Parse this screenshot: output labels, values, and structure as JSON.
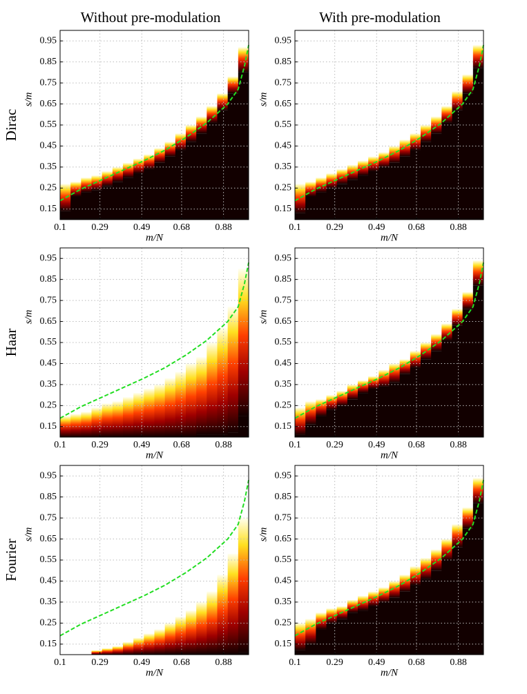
{
  "column_titles": [
    "Without pre-modulation",
    "With pre-modulation"
  ],
  "row_labels": [
    "Dirac",
    "Haar",
    "Fourier"
  ],
  "chart_data": [
    {
      "type": "phase",
      "xlabel": "m/N",
      "ylabel": "s/m",
      "xlim": [
        0.1,
        1.0
      ],
      "ylim": [
        0.1,
        1.0
      ],
      "xticks": [
        0.1,
        0.29,
        0.49,
        0.68,
        0.88
      ],
      "yticks": [
        0.15,
        0.25,
        0.35,
        0.45,
        0.55,
        0.65,
        0.75,
        0.85,
        0.95
      ],
      "grid": true,
      "x": [
        0.1,
        0.15,
        0.2,
        0.25,
        0.3,
        0.35,
        0.4,
        0.45,
        0.5,
        0.55,
        0.6,
        0.65,
        0.7,
        0.75,
        0.8,
        0.85,
        0.9,
        0.95
      ],
      "lower": [
        0.14,
        0.21,
        0.23,
        0.24,
        0.26,
        0.28,
        0.3,
        0.32,
        0.34,
        0.37,
        0.4,
        0.43,
        0.47,
        0.51,
        0.56,
        0.62,
        0.7,
        0.8
      ],
      "upper": [
        0.27,
        0.28,
        0.3,
        0.31,
        0.33,
        0.35,
        0.37,
        0.39,
        0.41,
        0.44,
        0.47,
        0.51,
        0.55,
        0.59,
        0.64,
        0.7,
        0.78,
        0.92
      ],
      "curve": {
        "color": "#22dd22",
        "x": [
          0.1,
          0.2,
          0.3,
          0.4,
          0.5,
          0.6,
          0.7,
          0.8,
          0.9,
          0.95,
          0.98,
          1.0
        ],
        "y": [
          0.19,
          0.245,
          0.29,
          0.335,
          0.38,
          0.43,
          0.49,
          0.56,
          0.65,
          0.72,
          0.83,
          0.93
        ]
      }
    },
    {
      "type": "phase",
      "xlabel": "m/N",
      "ylabel": "s/m",
      "xlim": [
        0.1,
        1.0
      ],
      "ylim": [
        0.1,
        1.0
      ],
      "xticks": [
        0.1,
        0.29,
        0.49,
        0.68,
        0.88
      ],
      "yticks": [
        0.15,
        0.25,
        0.35,
        0.45,
        0.55,
        0.65,
        0.75,
        0.85,
        0.95
      ],
      "grid": true,
      "x": [
        0.1,
        0.15,
        0.2,
        0.25,
        0.3,
        0.35,
        0.4,
        0.45,
        0.5,
        0.55,
        0.6,
        0.65,
        0.7,
        0.75,
        0.8,
        0.85,
        0.9,
        0.95
      ],
      "lower": [
        0.13,
        0.21,
        0.23,
        0.25,
        0.27,
        0.29,
        0.31,
        0.33,
        0.35,
        0.37,
        0.4,
        0.43,
        0.47,
        0.51,
        0.56,
        0.62,
        0.7,
        0.82
      ],
      "upper": [
        0.27,
        0.28,
        0.3,
        0.32,
        0.34,
        0.36,
        0.38,
        0.4,
        0.42,
        0.45,
        0.48,
        0.51,
        0.55,
        0.59,
        0.64,
        0.71,
        0.79,
        0.93
      ],
      "curve": {
        "color": "#22dd22",
        "x": [
          0.1,
          0.2,
          0.3,
          0.4,
          0.5,
          0.6,
          0.7,
          0.8,
          0.9,
          0.95,
          0.98,
          1.0
        ],
        "y": [
          0.19,
          0.245,
          0.29,
          0.335,
          0.38,
          0.43,
          0.49,
          0.56,
          0.65,
          0.72,
          0.83,
          0.93
        ]
      }
    },
    {
      "type": "phase",
      "xlabel": "m/N",
      "ylabel": "s/m",
      "xlim": [
        0.1,
        1.0
      ],
      "ylim": [
        0.1,
        1.0
      ],
      "xticks": [
        0.1,
        0.29,
        0.49,
        0.68,
        0.88
      ],
      "yticks": [
        0.15,
        0.25,
        0.35,
        0.45,
        0.55,
        0.65,
        0.75,
        0.85,
        0.95
      ],
      "grid": true,
      "x": [
        0.1,
        0.15,
        0.2,
        0.25,
        0.3,
        0.35,
        0.4,
        0.45,
        0.5,
        0.55,
        0.6,
        0.65,
        0.7,
        0.75,
        0.8,
        0.85,
        0.9,
        0.95
      ],
      "lower": [
        0.1,
        0.1,
        0.1,
        0.1,
        0.1,
        0.1,
        0.1,
        0.1,
        0.1,
        0.1,
        0.1,
        0.1,
        0.1,
        0.11,
        0.11,
        0.11,
        0.12,
        0.2
      ],
      "upper": [
        0.2,
        0.21,
        0.22,
        0.24,
        0.26,
        0.27,
        0.29,
        0.31,
        0.33,
        0.35,
        0.38,
        0.41,
        0.45,
        0.48,
        0.55,
        0.62,
        0.72,
        0.9
      ],
      "curve": {
        "color": "#22dd22",
        "x": [
          0.1,
          0.2,
          0.3,
          0.4,
          0.5,
          0.6,
          0.7,
          0.8,
          0.9,
          0.95,
          0.98,
          1.0
        ],
        "y": [
          0.19,
          0.245,
          0.29,
          0.335,
          0.38,
          0.43,
          0.49,
          0.56,
          0.65,
          0.72,
          0.83,
          0.93
        ]
      }
    },
    {
      "type": "phase",
      "xlabel": "m/N",
      "ylabel": "s/m",
      "xlim": [
        0.1,
        1.0
      ],
      "ylim": [
        0.1,
        1.0
      ],
      "xticks": [
        0.1,
        0.29,
        0.49,
        0.68,
        0.88
      ],
      "yticks": [
        0.15,
        0.25,
        0.35,
        0.45,
        0.55,
        0.65,
        0.75,
        0.85,
        0.95
      ],
      "grid": true,
      "x": [
        0.1,
        0.15,
        0.2,
        0.25,
        0.3,
        0.35,
        0.4,
        0.45,
        0.5,
        0.55,
        0.6,
        0.65,
        0.7,
        0.75,
        0.8,
        0.85,
        0.9,
        0.95
      ],
      "lower": [
        0.11,
        0.16,
        0.2,
        0.23,
        0.25,
        0.28,
        0.31,
        0.33,
        0.34,
        0.36,
        0.4,
        0.43,
        0.47,
        0.51,
        0.56,
        0.63,
        0.71,
        0.82
      ],
      "upper": [
        0.24,
        0.27,
        0.28,
        0.3,
        0.32,
        0.35,
        0.37,
        0.39,
        0.42,
        0.45,
        0.47,
        0.51,
        0.55,
        0.59,
        0.64,
        0.71,
        0.79,
        0.94
      ],
      "curve": {
        "color": "#22dd22",
        "x": [
          0.1,
          0.2,
          0.3,
          0.4,
          0.5,
          0.6,
          0.7,
          0.8,
          0.9,
          0.95,
          0.98,
          1.0
        ],
        "y": [
          0.19,
          0.245,
          0.29,
          0.335,
          0.38,
          0.43,
          0.49,
          0.56,
          0.65,
          0.72,
          0.83,
          0.93
        ]
      }
    },
    {
      "type": "phase",
      "xlabel": "m/N",
      "ylabel": "s/m",
      "xlim": [
        0.1,
        1.0
      ],
      "ylim": [
        0.1,
        1.0
      ],
      "xticks": [
        0.1,
        0.29,
        0.49,
        0.68,
        0.88
      ],
      "yticks": [
        0.15,
        0.25,
        0.35,
        0.45,
        0.55,
        0.65,
        0.75,
        0.85,
        0.95
      ],
      "grid": true,
      "x": [
        0.1,
        0.15,
        0.2,
        0.25,
        0.3,
        0.35,
        0.4,
        0.45,
        0.5,
        0.55,
        0.6,
        0.65,
        0.7,
        0.75,
        0.8,
        0.85,
        0.9,
        0.95
      ],
      "lower": [
        0.1,
        0.1,
        0.1,
        0.1,
        0.1,
        0.1,
        0.1,
        0.1,
        0.1,
        0.1,
        0.1,
        0.1,
        0.1,
        0.1,
        0.1,
        0.1,
        0.1,
        0.11
      ],
      "upper": [
        0.1,
        0.1,
        0.1,
        0.12,
        0.13,
        0.14,
        0.16,
        0.18,
        0.2,
        0.22,
        0.25,
        0.28,
        0.31,
        0.35,
        0.4,
        0.48,
        0.58,
        0.75
      ],
      "curve": {
        "color": "#22dd22",
        "x": [
          0.1,
          0.2,
          0.3,
          0.4,
          0.5,
          0.6,
          0.7,
          0.8,
          0.9,
          0.95,
          0.98,
          1.0
        ],
        "y": [
          0.19,
          0.245,
          0.29,
          0.335,
          0.38,
          0.43,
          0.49,
          0.56,
          0.65,
          0.72,
          0.83,
          0.93
        ]
      }
    },
    {
      "type": "phase",
      "xlabel": "m/N",
      "ylabel": "s/m",
      "xlim": [
        0.1,
        1.0
      ],
      "ylim": [
        0.1,
        1.0
      ],
      "xticks": [
        0.1,
        0.29,
        0.49,
        0.68,
        0.88
      ],
      "yticks": [
        0.15,
        0.25,
        0.35,
        0.45,
        0.55,
        0.65,
        0.75,
        0.85,
        0.95
      ],
      "grid": true,
      "x": [
        0.1,
        0.15,
        0.2,
        0.25,
        0.3,
        0.35,
        0.4,
        0.45,
        0.5,
        0.55,
        0.6,
        0.65,
        0.7,
        0.75,
        0.8,
        0.85,
        0.9,
        0.95
      ],
      "lower": [
        0.12,
        0.15,
        0.22,
        0.25,
        0.27,
        0.3,
        0.31,
        0.33,
        0.35,
        0.37,
        0.4,
        0.43,
        0.46,
        0.5,
        0.55,
        0.61,
        0.7,
        0.82
      ],
      "upper": [
        0.25,
        0.27,
        0.3,
        0.32,
        0.33,
        0.36,
        0.38,
        0.4,
        0.42,
        0.45,
        0.48,
        0.52,
        0.56,
        0.6,
        0.65,
        0.72,
        0.8,
        0.94
      ],
      "curve": {
        "color": "#22dd22",
        "x": [
          0.1,
          0.2,
          0.3,
          0.4,
          0.5,
          0.6,
          0.7,
          0.8,
          0.9,
          0.95,
          0.98,
          1.0
        ],
        "y": [
          0.19,
          0.245,
          0.29,
          0.335,
          0.38,
          0.43,
          0.49,
          0.56,
          0.65,
          0.72,
          0.83,
          0.93
        ]
      }
    }
  ]
}
